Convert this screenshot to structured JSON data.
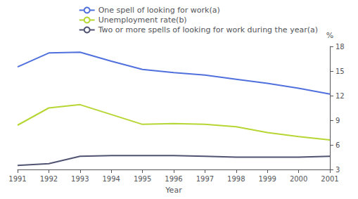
{
  "chart_data": {
    "type": "line",
    "xlabel": "Year",
    "ylabel": "%",
    "x": [
      1991,
      1992,
      1993,
      1994,
      1995,
      1996,
      1997,
      1998,
      1999,
      2000,
      2001
    ],
    "series": [
      {
        "name": "One spell of looking for work(a)",
        "values": [
          15.5,
          17.2,
          17.3,
          16.2,
          15.2,
          14.8,
          14.5,
          14.0,
          13.5,
          12.9,
          12.2
        ]
      },
      {
        "name": "Unemployment rate(b)",
        "values": [
          8.4,
          10.5,
          10.9,
          9.7,
          8.5,
          8.6,
          8.5,
          8.2,
          7.5,
          7.0,
          6.6
        ]
      },
      {
        "name": "Two or more spells of looking for work during the year(a)",
        "values": [
          3.5,
          3.7,
          4.6,
          4.7,
          4.7,
          4.7,
          4.6,
          4.5,
          4.5,
          4.5,
          4.6
        ]
      }
    ],
    "xlim": [
      1991,
      2001
    ],
    "xticks": [
      1991,
      1992,
      1993,
      1994,
      1995,
      1996,
      1997,
      1998,
      1999,
      2000,
      2001
    ],
    "ylim": [
      3,
      18
    ],
    "yticks": [
      3,
      6,
      9,
      12,
      15,
      18
    ],
    "grid": false,
    "legend": "upper right"
  }
}
